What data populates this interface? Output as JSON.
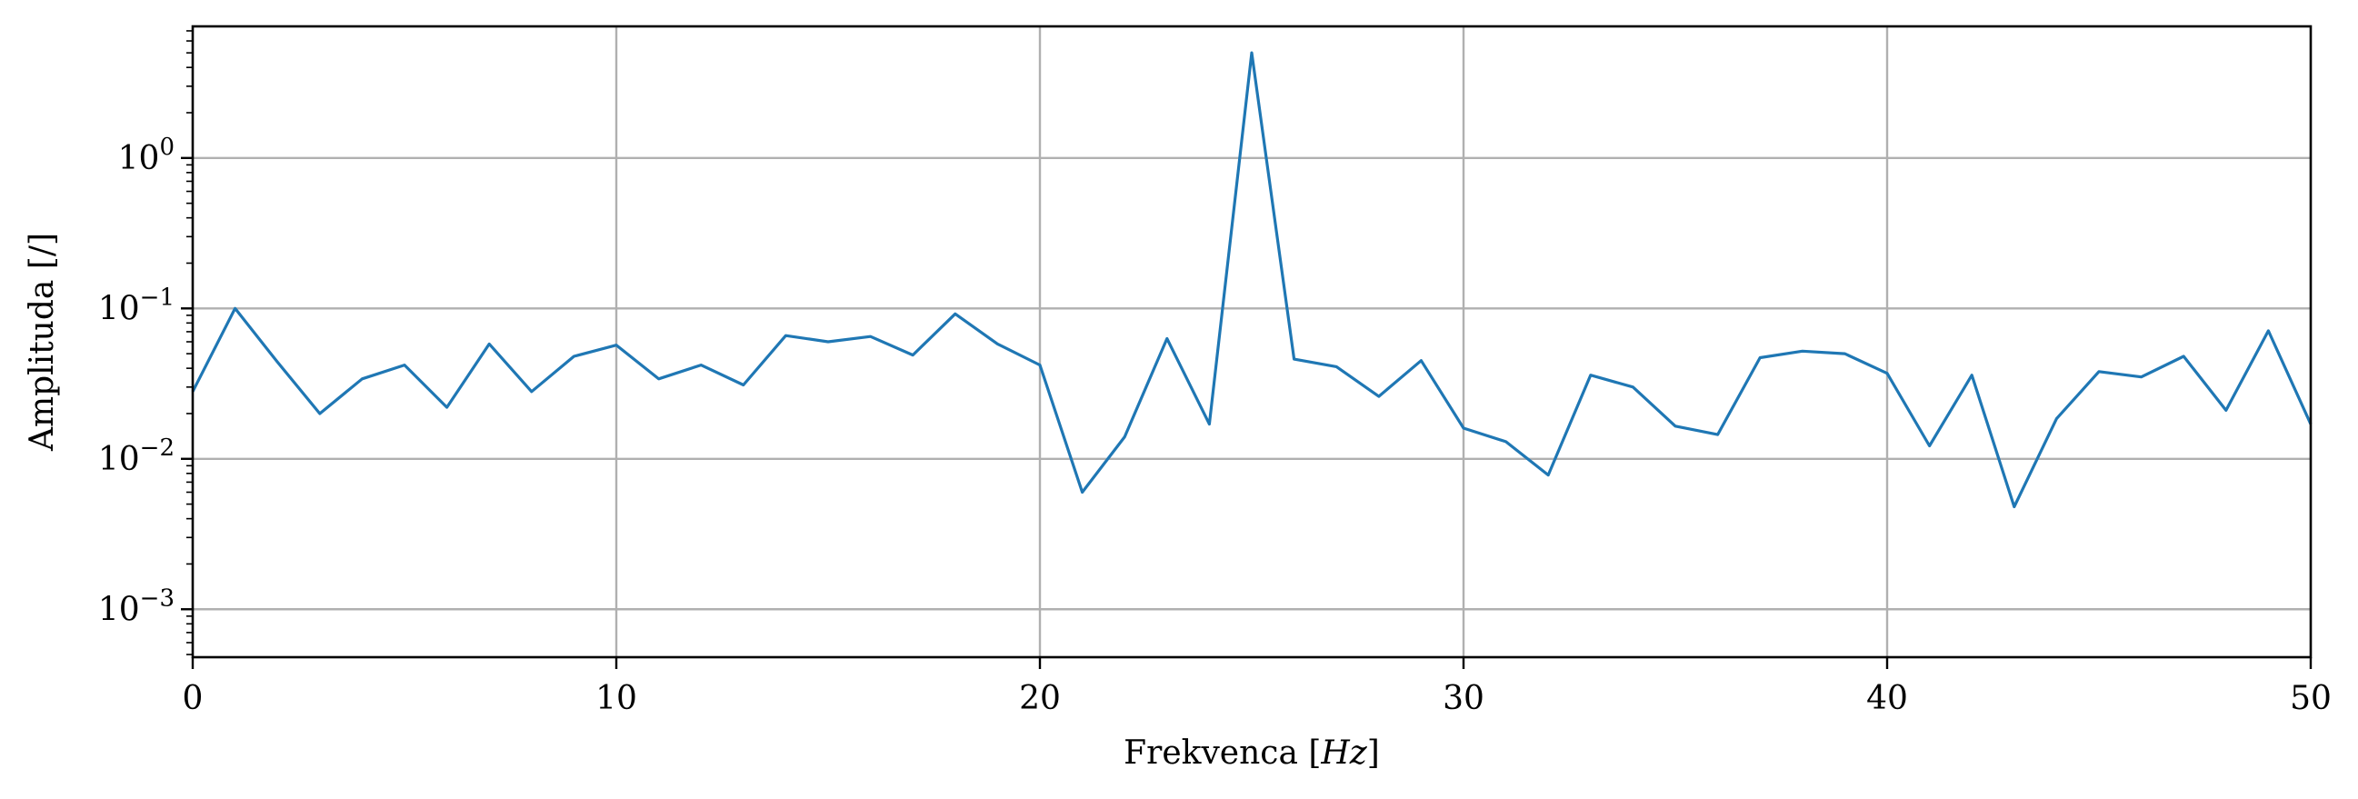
{
  "chart_data": {
    "type": "line",
    "title": "",
    "xlabel_prefix": "Frekvenca [",
    "xlabel_unit": "Hz",
    "xlabel_suffix": "]",
    "ylabel": "Amplituda [/]",
    "xlim": [
      0,
      50
    ],
    "ylim": [
      0.00048,
      7.5
    ],
    "yscale": "log",
    "grid": true,
    "line_color": "#1f77b4",
    "x_ticks": [
      0,
      10,
      20,
      30,
      40,
      50
    ],
    "y_ticks": [
      {
        "value": 0.001,
        "base": "10",
        "exp": "−3"
      },
      {
        "value": 0.01,
        "base": "10",
        "exp": "−2"
      },
      {
        "value": 0.1,
        "base": "10",
        "exp": "−1"
      },
      {
        "value": 1,
        "base": "10",
        "exp": "0"
      }
    ],
    "series": [
      {
        "x": [
          0,
          1,
          2,
          3,
          4,
          5,
          6,
          7,
          8,
          9,
          10,
          11,
          12,
          13,
          14,
          15,
          16,
          17,
          18,
          19,
          20,
          21,
          22,
          23,
          24,
          25,
          26,
          27,
          28,
          29,
          30,
          31,
          32,
          33,
          34,
          35,
          36,
          37,
          38,
          39,
          40,
          41,
          42,
          43,
          44,
          45,
          46,
          47,
          48,
          49,
          50
        ],
        "values": [
          0.028,
          0.1,
          0.044,
          0.02,
          0.034,
          0.042,
          0.022,
          0.058,
          0.028,
          0.048,
          0.057,
          0.034,
          0.042,
          0.031,
          0.066,
          0.06,
          0.065,
          0.049,
          0.092,
          0.058,
          0.042,
          0.006,
          0.014,
          0.063,
          0.017,
          5.0,
          0.046,
          0.041,
          0.026,
          0.045,
          0.016,
          0.013,
          0.0078,
          0.036,
          0.03,
          0.0165,
          0.0145,
          0.047,
          0.052,
          0.05,
          0.037,
          0.0122,
          0.036,
          0.0048,
          0.0185,
          0.038,
          0.035,
          0.048,
          0.021,
          0.071,
          0.017
        ]
      }
    ]
  }
}
